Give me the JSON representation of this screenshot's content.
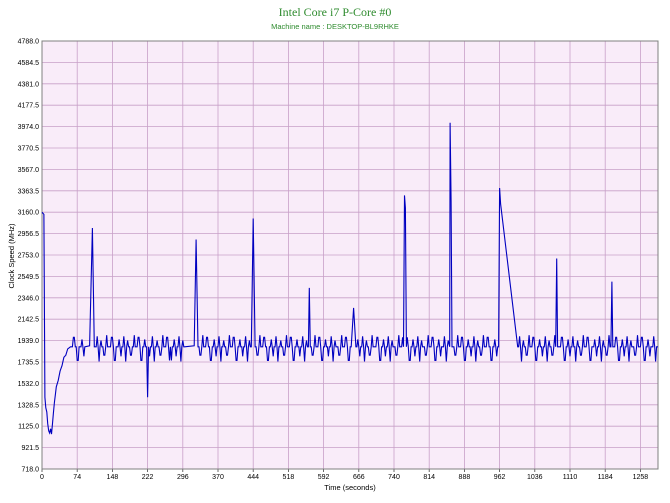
{
  "chart_data": {
    "type": "line",
    "title": "Intel Core i7 P-Core #0",
    "subtitle": "Machine name : DESKTOP-BL9RHKE",
    "xlabel": "Time (seconds)",
    "ylabel": "Clock Speed (MHz)",
    "xlim": [
      0,
      1295
    ],
    "ylim": [
      718.0,
      4788.0
    ],
    "x_ticks": [
      "0",
      "74",
      "148",
      "222",
      "296",
      "370",
      "444",
      "518",
      "592",
      "666",
      "740",
      "814",
      "888",
      "962",
      "1036",
      "1110",
      "1184",
      "1258"
    ],
    "y_ticks": [
      "4788.0",
      "4584.5",
      "4381.0",
      "4177.5",
      "3974.0",
      "3770.5",
      "3567.0",
      "3363.5",
      "3160.0",
      "2956.5",
      "2753.0",
      "2549.5",
      "2346.0",
      "2142.5",
      "1939.0",
      "1735.5",
      "1532.0",
      "1328.5",
      "1125.0",
      "921.5",
      "718.0"
    ],
    "grid": true,
    "legend": "none",
    "colors": {
      "line": "#0000c0",
      "plot_bg": "#f9ecf9",
      "grid": "#c8a0c8",
      "title": "#2e8b2e"
    },
    "baseline_mhz": 1880,
    "series": [
      {
        "x": [
          0,
          4,
          6,
          8,
          10,
          12,
          14,
          16,
          18,
          20,
          22,
          24,
          26,
          28,
          30,
          34,
          38,
          42,
          46,
          50,
          54,
          60,
          70,
          80,
          90,
          100,
          106,
          110,
          140,
          160,
          190,
          220,
          222,
          224,
          240,
          270,
          300,
          320,
          324,
          328,
          350,
          380,
          420,
          440,
          444,
          448,
          470,
          500,
          540,
          560,
          562,
          564,
          600,
          620,
          650,
          655,
          660,
          700,
          740,
          760,
          762,
          764,
          766,
          800,
          840,
          857,
          858,
          860,
          862,
          900,
          940,
          960,
          962,
          964,
          1000,
          1050,
          1080,
          1082,
          1084,
          1120,
          1160,
          1196,
          1198,
          1200,
          1240,
          1280,
          1295
        ],
        "y": [
          3160,
          3140,
          1400,
          1300,
          1260,
          1150,
          1080,
          1060,
          1100,
          1050,
          1150,
          1250,
          1350,
          1420,
          1500,
          1560,
          1650,
          1700,
          1780,
          1800,
          1860,
          1880,
          1880,
          1880,
          1880,
          1890,
          3010,
          1880,
          1880,
          1880,
          1880,
          1880,
          1400,
          1880,
          1880,
          1880,
          1880,
          1890,
          2900,
          1880,
          1880,
          1880,
          1880,
          1880,
          3100,
          1880,
          1880,
          1880,
          1880,
          1880,
          2440,
          1880,
          1880,
          1880,
          1880,
          2250,
          1880,
          1880,
          1880,
          1880,
          3320,
          3200,
          1880,
          1880,
          1880,
          1880,
          4010,
          3260,
          1880,
          1880,
          1880,
          1880,
          3390,
          3240,
          1880,
          1880,
          1880,
          2720,
          1880,
          1880,
          1880,
          1880,
          2500,
          1880,
          1880,
          1880,
          1880
        ]
      }
    ]
  }
}
